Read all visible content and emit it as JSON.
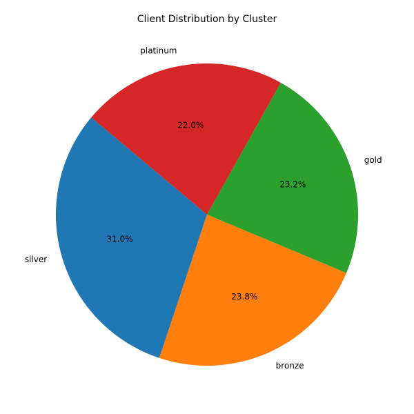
{
  "chart_data": {
    "type": "pie",
    "title": "Client Distribution by Cluster",
    "start_angle_deg": 140,
    "direction": "counterclockwise",
    "slices": [
      {
        "label": "silver",
        "value": 31.0,
        "percent_label": "31.0%",
        "color": "#1f77b4"
      },
      {
        "label": "bronze",
        "value": 23.8,
        "percent_label": "23.8%",
        "color": "#ff7f0e"
      },
      {
        "label": "gold",
        "value": 23.2,
        "percent_label": "23.2%",
        "color": "#2ca02c"
      },
      {
        "label": "platinum",
        "value": 22.0,
        "percent_label": "22.0%",
        "color": "#d62728"
      }
    ],
    "legend": "none"
  }
}
